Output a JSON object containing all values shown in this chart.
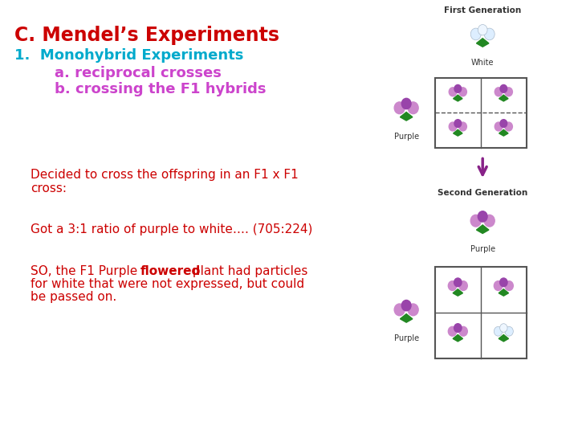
{
  "title": "C. Mendel’s Experiments",
  "title_color": "#cc0000",
  "title_fontsize": 17,
  "line1": "1.  Monohybrid Experiments",
  "line1_color": "#00aacc",
  "line1_fontsize": 13,
  "line2": "        a. reciprocal crosses",
  "line2_color": "#cc44cc",
  "line2_fontsize": 13,
  "line3": "        b. crossing the F1 hybrids",
  "line3_color": "#cc44cc",
  "line3_fontsize": 13,
  "body1": "Decided to cross the offspring in an F1 x F1\ncross:",
  "body1_color": "#cc0000",
  "body1_fontsize": 11,
  "body2": "Got a 3:1 ratio of purple to white…. (705:224)",
  "body2_color": "#cc0000",
  "body2_fontsize": 11,
  "body3_line1a": "SO, the F1 Purple ",
  "body3_line1b": "flowered",
  "body3_line1c": " plant had particles",
  "body3_line2": "for white that were not expressed, but could",
  "body3_line3": "be passed on.",
  "body3_color": "#cc0000",
  "body3_fontsize": 11,
  "bg_color": "#ffffff",
  "first_gen_label": "First Generation",
  "white_label": "White",
  "second_gen_label": "Second Generation",
  "purple_label1": "Purple",
  "purple_label2": "Purple",
  "purple_label3": "Purple"
}
